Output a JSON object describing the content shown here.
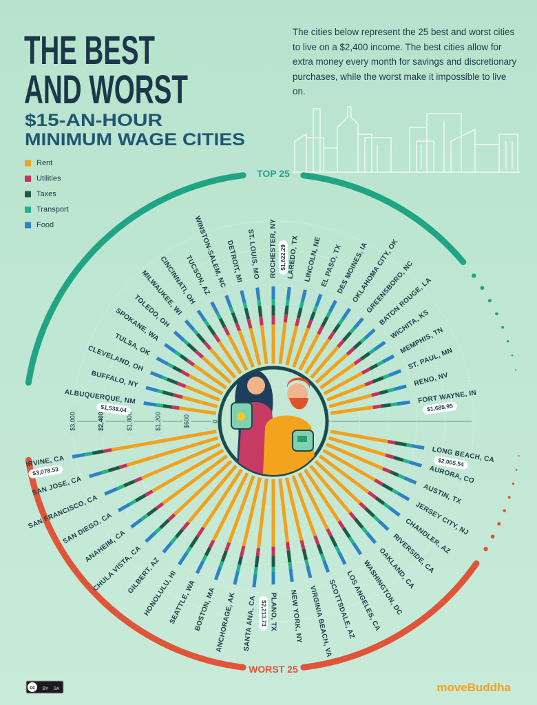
{
  "chart_data": {
    "type": "radial_stacked_bar",
    "title": [
      "THE BEST",
      "AND WORST"
    ],
    "subtitle": [
      "$15-AN-HOUR",
      "MINIMUM WAGE CITIES"
    ],
    "description": "The cities below represent the 25 best and worst cities to live on a $2,400 income. The best cities allow for extra money every month for savings and discretionary purchases, while the worst make it impossible to live on.",
    "ylim": [
      0,
      3100
    ],
    "yticks": [
      0,
      {
        "value": 600,
        "label": "$600"
      },
      {
        "value": 1200,
        "label": "$1,200"
      },
      {
        "value": 1800,
        "label": "$1,800"
      },
      {
        "value": 2400,
        "label": "$2,400"
      },
      {
        "value": 3000,
        "label": "$3,000"
      }
    ],
    "highlight_tick": 2400,
    "grid": true,
    "legend": "top-left",
    "series": [
      {
        "name": "Rent",
        "color": "#f0a11e"
      },
      {
        "name": "Utilities",
        "color": "#c8325a"
      },
      {
        "name": "Taxes",
        "color": "#1d5a48"
      },
      {
        "name": "Transport",
        "color": "#1fb48a"
      },
      {
        "name": "Food",
        "color": "#2e82c6"
      }
    ],
    "groups": [
      {
        "label": "TOP 25",
        "color": "#1fa584",
        "categories": [
          "ALBUQUERQUE, NM",
          "BUFFALO, NY",
          "CLEVELAND, OH",
          "TULSA, OK",
          "SPOKANE, WA",
          "TOLEDO, OH",
          "MILWAUKEE, WI",
          "CINCINNATI, OH",
          "TUCSON, AZ",
          "WINSTON-SALEM, NC",
          "DETROIT, MI",
          "ST. LOUIS, MO",
          "ROCHESTER, NY",
          "LAREDO, TX",
          "LINCOLN, NE",
          "EL PASO, TX",
          "DES MOINES, IA",
          "OKLAHOMA CITY, OK",
          "GREENSBORO, NC",
          "BATON ROUGE, LA",
          "WICHITA, KS",
          "MEMPHIS, TN",
          "ST. PAUL, MN",
          "RENO, NV",
          "FORT WAYNE, IN"
        ],
        "values": [
          [
            780,
            160,
            190,
            140,
            268.04
          ],
          [
            760,
            200,
            230,
            110,
            255
          ],
          [
            770,
            190,
            225,
            115,
            260
          ],
          [
            800,
            185,
            200,
            125,
            262
          ],
          [
            830,
            170,
            180,
            135,
            265
          ],
          [
            790,
            195,
            225,
            115,
            262
          ],
          [
            800,
            185,
            230,
            120,
            258
          ],
          [
            810,
            180,
            225,
            120,
            265
          ],
          [
            830,
            180,
            205,
            130,
            260
          ],
          [
            820,
            175,
            225,
            125,
            265
          ],
          [
            800,
            200,
            235,
            120,
            260
          ],
          [
            820,
            185,
            225,
            125,
            263
          ],
          [
            820,
            190,
            215,
            130,
            267.29
          ],
          [
            880,
            175,
            180,
            130,
            262
          ],
          [
            850,
            170,
            220,
            125,
            267
          ],
          [
            880,
            180,
            180,
            135,
            262
          ],
          [
            850,
            175,
            230,
            120,
            267
          ],
          [
            870,
            180,
            200,
            130,
            267
          ],
          [
            860,
            175,
            225,
            125,
            267
          ],
          [
            880,
            190,
            200,
            125,
            262
          ],
          [
            880,
            170,
            215,
            130,
            267
          ],
          [
            910,
            185,
            180,
            130,
            262
          ],
          [
            860,
            175,
            240,
            125,
            272
          ],
          [
            920,
            175,
            180,
            135,
            268
          ],
          [
            900,
            175,
            205,
            135,
            270.95
          ]
        ],
        "totals": [
          1538.04,
          null,
          null,
          null,
          null,
          null,
          null,
          null,
          null,
          null,
          null,
          null,
          1622.29,
          null,
          null,
          null,
          null,
          null,
          null,
          null,
          null,
          null,
          null,
          null,
          1685.95
        ],
        "value_labels": [
          "$1,538.04",
          null,
          null,
          null,
          null,
          null,
          null,
          null,
          null,
          null,
          null,
          null,
          "$1,622.29",
          null,
          null,
          null,
          null,
          null,
          null,
          null,
          null,
          null,
          null,
          null,
          "$1,685.95"
        ]
      },
      {
        "label": "WORST 25",
        "color": "#e0553a",
        "categories": [
          "IRVINE, CA",
          "SAN JOSE, CA",
          "SAN FRANCISCO, CA",
          "SAN DIEGO, CA",
          "ANAHEIM, CA",
          "CHULA VISTA, CA",
          "GILBERT, AZ",
          "HONOLULU, HI",
          "SEATTLE, WA",
          "BOSTON, MA",
          "ANCHORAGE, AK",
          "SANTA ANA, CA",
          "PLANO, TX",
          "NEW YORK, NY",
          "VIRGINIA BEACH, VA",
          "SCOTTSDALE, AZ",
          "LOS ANGELES, CA",
          "WASHINGTON, DC",
          "OAKLAND, CA",
          "RIVERSIDE, CA",
          "CHANDLER, AZ",
          "JERSEY CITY, NJ",
          "AUSTIN, TX",
          "AURORA, CO",
          "LONG BEACH, CA"
        ],
        "values": [
          [
            2240,
            170,
            240,
            150,
            278.53
          ],
          [
            2000,
            165,
            240,
            145,
            275
          ],
          [
            1800,
            160,
            245,
            155,
            285
          ],
          [
            1720,
            165,
            240,
            145,
            275
          ],
          [
            1680,
            165,
            240,
            150,
            275
          ],
          [
            1640,
            170,
            240,
            145,
            275
          ],
          [
            1560,
            200,
            205,
            150,
            265
          ],
          [
            1460,
            230,
            260,
            140,
            300
          ],
          [
            1590,
            170,
            180,
            140,
            280
          ],
          [
            1500,
            190,
            230,
            130,
            280
          ],
          [
            1480,
            230,
            170,
            145,
            285
          ],
          [
            1470,
            165,
            240,
            150,
            275
          ],
          [
            1420,
            190,
            230,
            110,
            263.73
          ],
          [
            1340,
            180,
            245,
            130,
            285
          ],
          [
            1360,
            190,
            225,
            125,
            265
          ],
          [
            1350,
            195,
            205,
            150,
            260
          ],
          [
            1320,
            165,
            240,
            145,
            275
          ],
          [
            1300,
            170,
            230,
            150,
            280
          ],
          [
            1290,
            165,
            245,
            145,
            275
          ],
          [
            1290,
            165,
            240,
            140,
            270
          ],
          [
            1280,
            200,
            205,
            150,
            260
          ],
          [
            1250,
            185,
            240,
            140,
            265
          ],
          [
            1290,
            180,
            180,
            140,
            265
          ],
          [
            1250,
            175,
            210,
            140,
            265
          ],
          [
            1230,
            160,
            240,
            110,
            265.54
          ]
        ],
        "totals": [
          3078.53,
          null,
          null,
          null,
          null,
          null,
          null,
          null,
          null,
          null,
          null,
          null,
          2213.73,
          null,
          null,
          null,
          null,
          null,
          null,
          null,
          null,
          null,
          null,
          null,
          2005.54
        ],
        "value_labels": [
          "$3,078.53",
          null,
          null,
          null,
          null,
          null,
          null,
          null,
          null,
          null,
          null,
          null,
          "$2,213.73",
          null,
          null,
          null,
          null,
          null,
          null,
          null,
          null,
          null,
          null,
          null,
          "$2,005.54"
        ]
      }
    ]
  },
  "footer": {
    "brand": "moveBuddha",
    "license": [
      "BY",
      "SA"
    ]
  }
}
